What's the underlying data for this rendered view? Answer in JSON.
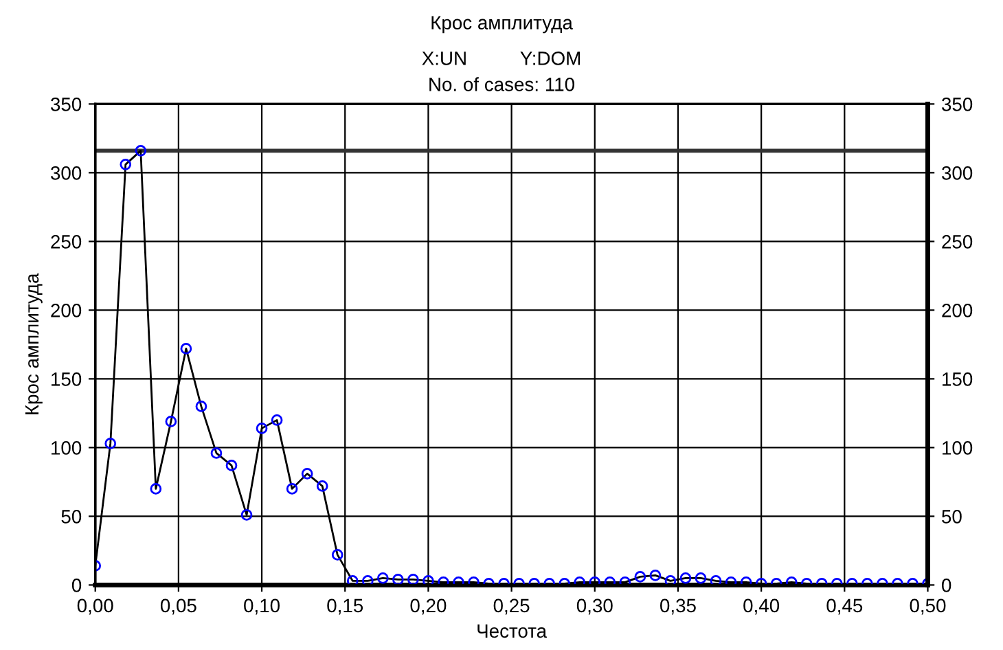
{
  "chart_data": {
    "type": "line",
    "title": "Крос амплитуда",
    "subtitle": "X:UN          Y:DOM\nNo. of cases: 110",
    "xlabel": "Честота",
    "ylabel": "Крос амплитуда",
    "x": [
      0,
      0.00909,
      0.01818,
      0.02727,
      0.03636,
      0.04545,
      0.05455,
      0.06364,
      0.07273,
      0.08182,
      0.09091,
      0.1,
      0.10909,
      0.11818,
      0.12727,
      0.13636,
      0.14545,
      0.15455,
      0.16364,
      0.17273,
      0.18182,
      0.19091,
      0.2,
      0.20909,
      0.21818,
      0.22727,
      0.23636,
      0.24545,
      0.25455,
      0.26364,
      0.27273,
      0.28182,
      0.29091,
      0.3,
      0.30909,
      0.31818,
      0.32727,
      0.33636,
      0.34545,
      0.35455,
      0.36364,
      0.37273,
      0.38182,
      0.39091,
      0.4,
      0.40909,
      0.41818,
      0.42727,
      0.43636,
      0.44545,
      0.45455,
      0.46364,
      0.47273,
      0.48182,
      0.49091,
      0.5
    ],
    "series": [
      {
        "color": "#0000ff",
        "values": [
          14,
          103,
          306,
          316,
          70,
          119,
          172,
          130,
          96,
          87,
          51,
          114,
          120,
          70,
          81,
          72,
          22,
          3,
          3,
          5,
          4,
          4,
          3,
          2,
          2,
          2,
          1,
          1,
          1,
          1,
          1,
          1,
          2,
          2,
          2,
          2,
          6,
          7,
          3,
          5,
          5,
          3,
          2,
          2,
          1,
          1,
          2,
          1,
          1,
          1,
          1,
          1,
          1,
          1,
          1,
          1
        ]
      }
    ],
    "marker": "circle",
    "line_style": "solid",
    "grid": true,
    "xlim": [
      0,
      0.5
    ],
    "xticks": [
      {
        "value": 0,
        "label": "0,00"
      },
      {
        "value": 0.05,
        "label": "0,05"
      },
      {
        "value": 0.1,
        "label": "0,10"
      },
      {
        "value": 0.15,
        "label": "0,15"
      },
      {
        "value": 0.2,
        "label": "0,20"
      },
      {
        "value": 0.25,
        "label": "0,25"
      },
      {
        "value": 0.3,
        "label": "0,30"
      },
      {
        "value": 0.35,
        "label": "0,35"
      },
      {
        "value": 0.4,
        "label": "0,40"
      },
      {
        "value": 0.45,
        "label": "0,45"
      },
      {
        "value": 0.5,
        "label": "0,50"
      }
    ],
    "ylim": [
      0,
      350
    ],
    "yticks": [
      0,
      50,
      100,
      150,
      200,
      250,
      300,
      350
    ],
    "y2lim": [
      0,
      350
    ],
    "y2ticks": [
      0,
      50,
      100,
      150,
      200,
      250,
      300,
      350
    ],
    "ref_lines": [
      {
        "axis": "y",
        "value": 316,
        "color": "#333333"
      }
    ]
  }
}
